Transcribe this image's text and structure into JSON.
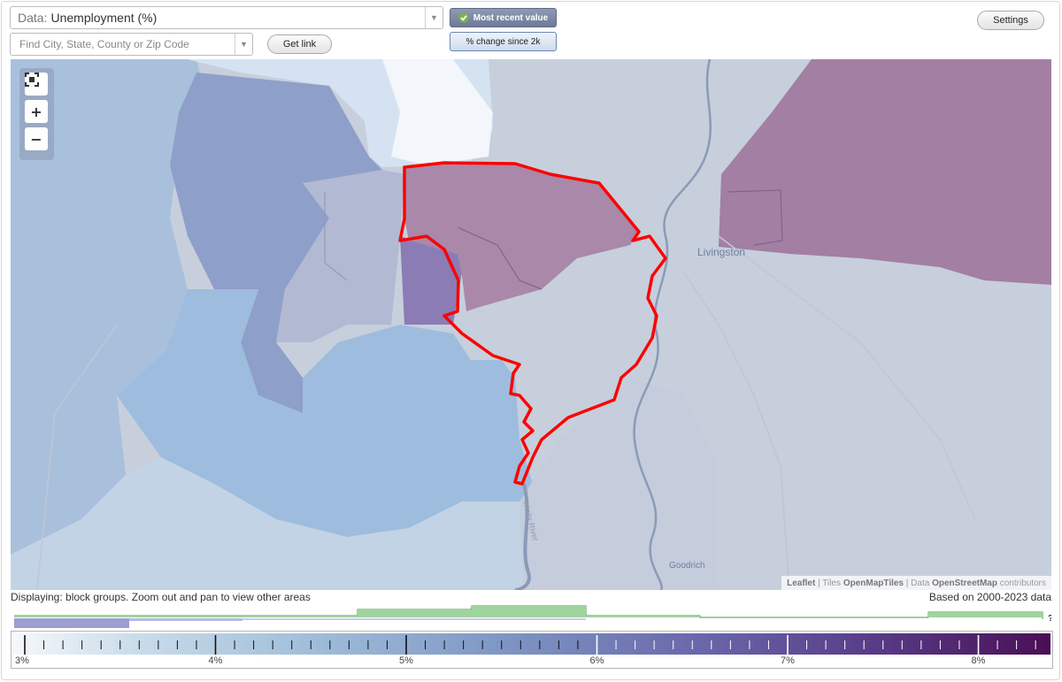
{
  "data_selector": {
    "prefix": "Data:",
    "value": "Unemployment (%)"
  },
  "search": {
    "placeholder": "Find City, State, County or Zip Code"
  },
  "buttons": {
    "get_link": "Get link",
    "settings": "Settings"
  },
  "toggles": {
    "most_recent": "Most recent value",
    "pct_change": "% change since 2k"
  },
  "map": {
    "labels": {
      "livingston": "Livingston",
      "goodrich": "Goodrich",
      "trinity_river": "Trinity River"
    },
    "attribution": {
      "leaflet": "Leaflet",
      "tiles_prefix": "| Tiles",
      "tiles": "OpenMapTiles",
      "data_prefix": "| Data",
      "osm": "OpenStreetMap",
      "contributors": "contributors"
    },
    "highlight_color": "#ff0000"
  },
  "status": {
    "displaying": "Displaying: block groups. Zoom out and pan to view other areas",
    "based_on": "Based on 2000-2023 data"
  },
  "histogram": {
    "question_mark": "?"
  },
  "legend": {
    "labels": [
      "3%",
      "4%",
      "5%",
      "6%",
      "7%",
      "8%"
    ],
    "min": 3,
    "max": 8.4,
    "low_color": "#f4f8fb",
    "high_color": "#4a0f55"
  },
  "icons": {
    "fullscreen": "fullscreen-icon",
    "zoom_in": "plus-icon",
    "zoom_out": "minus-icon",
    "check": "check-icon"
  }
}
